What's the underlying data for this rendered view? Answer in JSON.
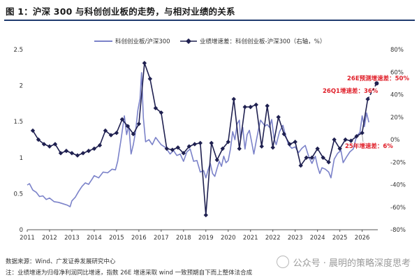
{
  "title": "图 1：沪深 300 与科创创业板的走势，与相对业绩的关系",
  "source": "数据来源：Wind、广发证券发展研究中心",
  "note": "注：业绩增速为归母净利润同比增速，指数 26E 增速采取 wind 一致预期自下而上整体法合成",
  "watermark": "公众号 · 晨明的策略深度思考",
  "colors": {
    "title_rule": "#1f3a6e",
    "series_ratio": "#7b82c9",
    "series_growth": "#1f2050",
    "annotation": "#e0202a"
  },
  "chart_data": {
    "type": "line",
    "legend_position": "top",
    "grid": false,
    "x_range": [
      2011,
      2026.7
    ],
    "x_ticks": [
      "2011",
      "2012",
      "2013",
      "2014",
      "2015",
      "2016",
      "2017",
      "2018",
      "2019",
      "2020",
      "2021",
      "2022",
      "2023",
      "2024",
      "2025",
      "2026"
    ],
    "y_left_range": [
      0,
      2.5
    ],
    "y_left_ticks": [
      "0",
      "0.5",
      "1",
      "1.5",
      "2",
      "2.5"
    ],
    "y_right_range": [
      -80,
      80
    ],
    "y_right_ticks": [
      "-80%",
      "-60%",
      "-40%",
      "-20%",
      "0%",
      "20%",
      "40%",
      "60%",
      "80%"
    ],
    "series": [
      {
        "name": "科创创业板/沪深300",
        "axis": "left",
        "points": [
          [
            2011.0,
            0.62
          ],
          [
            2011.1,
            0.64
          ],
          [
            2011.25,
            0.55
          ],
          [
            2011.4,
            0.52
          ],
          [
            2011.55,
            0.46
          ],
          [
            2011.7,
            0.47
          ],
          [
            2011.85,
            0.42
          ],
          [
            2012.0,
            0.44
          ],
          [
            2012.2,
            0.39
          ],
          [
            2012.4,
            0.38
          ],
          [
            2012.6,
            0.36
          ],
          [
            2012.8,
            0.34
          ],
          [
            2012.92,
            0.32
          ],
          [
            2013.0,
            0.4
          ],
          [
            2013.15,
            0.45
          ],
          [
            2013.3,
            0.53
          ],
          [
            2013.45,
            0.6
          ],
          [
            2013.6,
            0.65
          ],
          [
            2013.75,
            0.63
          ],
          [
            2013.9,
            0.7
          ],
          [
            2014.0,
            0.75
          ],
          [
            2014.2,
            0.72
          ],
          [
            2014.4,
            0.8
          ],
          [
            2014.6,
            0.79
          ],
          [
            2014.8,
            0.84
          ],
          [
            2014.95,
            0.83
          ],
          [
            2015.05,
            0.95
          ],
          [
            2015.2,
            1.25
          ],
          [
            2015.35,
            1.58
          ],
          [
            2015.45,
            1.32
          ],
          [
            2015.55,
            1.45
          ],
          [
            2015.65,
            1.05
          ],
          [
            2015.75,
            1.18
          ],
          [
            2015.85,
            1.36
          ],
          [
            2015.95,
            1.65
          ],
          [
            2016.05,
            1.82
          ],
          [
            2016.12,
            2.18
          ],
          [
            2016.2,
            1.55
          ],
          [
            2016.3,
            1.22
          ],
          [
            2016.45,
            1.25
          ],
          [
            2016.6,
            1.18
          ],
          [
            2016.75,
            1.28
          ],
          [
            2016.9,
            1.22
          ],
          [
            2017.0,
            1.18
          ],
          [
            2017.2,
            1.14
          ],
          [
            2017.4,
            1.05
          ],
          [
            2017.55,
            1.1
          ],
          [
            2017.7,
            1.03
          ],
          [
            2017.85,
            1.05
          ],
          [
            2018.0,
            0.95
          ],
          [
            2018.15,
            1.08
          ],
          [
            2018.3,
            1.12
          ],
          [
            2018.45,
            0.95
          ],
          [
            2018.6,
            0.96
          ],
          [
            2018.75,
            0.8
          ],
          [
            2018.9,
            0.82
          ],
          [
            2019.0,
            0.72
          ],
          [
            2019.1,
            0.83
          ],
          [
            2019.2,
            0.92
          ],
          [
            2019.3,
            0.78
          ],
          [
            2019.4,
            0.74
          ],
          [
            2019.5,
            0.85
          ],
          [
            2019.6,
            0.95
          ],
          [
            2019.7,
            0.88
          ],
          [
            2019.8,
            1.02
          ],
          [
            2019.9,
            0.93
          ],
          [
            2020.0,
            0.96
          ],
          [
            2020.1,
            1.12
          ],
          [
            2020.2,
            1.36
          ],
          [
            2020.3,
            1.25
          ],
          [
            2020.4,
            1.47
          ],
          [
            2020.5,
            1.52
          ],
          [
            2020.55,
            1.27
          ],
          [
            2020.65,
            1.42
          ],
          [
            2020.75,
            1.12
          ],
          [
            2020.85,
            1.32
          ],
          [
            2020.95,
            1.38
          ],
          [
            2021.05,
            1.22
          ],
          [
            2021.15,
            1.05
          ],
          [
            2021.25,
            1.22
          ],
          [
            2021.35,
            1.38
          ],
          [
            2021.45,
            1.52
          ],
          [
            2021.55,
            1.48
          ],
          [
            2021.65,
            1.44
          ],
          [
            2021.75,
            1.46
          ],
          [
            2021.85,
            1.42
          ],
          [
            2021.95,
            1.53
          ],
          [
            2022.05,
            1.27
          ],
          [
            2022.15,
            1.18
          ],
          [
            2022.3,
            1.36
          ],
          [
            2022.45,
            1.45
          ],
          [
            2022.55,
            1.33
          ],
          [
            2022.7,
            1.18
          ],
          [
            2022.85,
            1.13
          ],
          [
            2023.0,
            1.15
          ],
          [
            2023.15,
            1.07
          ],
          [
            2023.3,
            1.13
          ],
          [
            2023.45,
            1.17
          ],
          [
            2023.6,
            1.02
          ],
          [
            2023.75,
            0.92
          ],
          [
            2023.9,
            1.02
          ],
          [
            2024.0,
            0.88
          ],
          [
            2024.1,
            0.78
          ],
          [
            2024.2,
            0.86
          ],
          [
            2024.35,
            0.84
          ],
          [
            2024.5,
            0.8
          ],
          [
            2024.6,
            0.72
          ],
          [
            2024.75,
            0.98
          ],
          [
            2024.9,
            1.06
          ],
          [
            2025.05,
            1.1
          ],
          [
            2025.15,
            0.93
          ],
          [
            2025.3,
            1.01
          ],
          [
            2025.45,
            1.08
          ],
          [
            2025.6,
            1.12
          ],
          [
            2025.75,
            1.3
          ],
          [
            2025.9,
            1.35
          ],
          [
            2026.0,
            1.58
          ],
          [
            2026.1,
            1.43
          ],
          [
            2026.2,
            1.62
          ],
          [
            2026.3,
            1.49
          ]
        ]
      },
      {
        "name": "业绩增速差：科创创业板-沪深300（右轴，%）",
        "axis": "right",
        "points": [
          [
            2011.25,
            8
          ],
          [
            2011.5,
            0
          ],
          [
            2011.75,
            -4
          ],
          [
            2012.0,
            -6
          ],
          [
            2012.25,
            -4
          ],
          [
            2012.5,
            -12
          ],
          [
            2012.75,
            -10
          ],
          [
            2013.0,
            -12
          ],
          [
            2013.25,
            -14
          ],
          [
            2013.5,
            -12
          ],
          [
            2013.75,
            -10
          ],
          [
            2014.0,
            -8
          ],
          [
            2014.25,
            -5
          ],
          [
            2014.5,
            8
          ],
          [
            2014.75,
            4
          ],
          [
            2015.0,
            6
          ],
          [
            2015.25,
            18
          ],
          [
            2015.5,
            12
          ],
          [
            2015.75,
            5
          ],
          [
            2016.0,
            14
          ],
          [
            2016.25,
            68
          ],
          [
            2016.5,
            54
          ],
          [
            2016.75,
            28
          ],
          [
            2017.0,
            24
          ],
          [
            2017.25,
            -8
          ],
          [
            2017.5,
            -9
          ],
          [
            2017.75,
            -7
          ],
          [
            2018.0,
            -12
          ],
          [
            2018.25,
            -6
          ],
          [
            2018.5,
            -4
          ],
          [
            2018.75,
            -3
          ],
          [
            2019.0,
            -67
          ],
          [
            2019.25,
            -3
          ],
          [
            2019.5,
            -18
          ],
          [
            2019.75,
            -8
          ],
          [
            2020.0,
            -2
          ],
          [
            2020.25,
            36
          ],
          [
            2020.5,
            -8
          ],
          [
            2020.75,
            29
          ],
          [
            2021.0,
            29
          ],
          [
            2021.25,
            31
          ],
          [
            2021.5,
            -6
          ],
          [
            2021.75,
            30
          ],
          [
            2022.0,
            -7
          ],
          [
            2022.25,
            20
          ],
          [
            2022.5,
            5
          ],
          [
            2022.75,
            -4
          ],
          [
            2023.0,
            -2
          ],
          [
            2023.25,
            -23
          ],
          [
            2023.5,
            -16
          ],
          [
            2023.75,
            -16
          ],
          [
            2024.0,
            -8
          ],
          [
            2024.25,
            -16
          ],
          [
            2024.5,
            -20
          ],
          [
            2024.75,
            0
          ],
          [
            2025.0,
            -8
          ],
          [
            2025.25,
            0
          ],
          [
            2025.5,
            -1
          ],
          [
            2025.75,
            3
          ],
          [
            2026.0,
            6
          ],
          [
            2026.25,
            36
          ]
        ],
        "forecast": [
          [
            2026.25,
            36
          ],
          [
            2026.65,
            50
          ]
        ]
      }
    ],
    "annotations": [
      {
        "text": "26E预测增速差：50%",
        "x": 2026.65,
        "y": 50,
        "axis": "right"
      },
      {
        "text": "26Q1增速差：36%",
        "x": 2026.25,
        "y": 36,
        "axis": "right"
      },
      {
        "text": "25年增速差：6%",
        "x": 2026.0,
        "y": 6,
        "axis": "right"
      }
    ]
  }
}
